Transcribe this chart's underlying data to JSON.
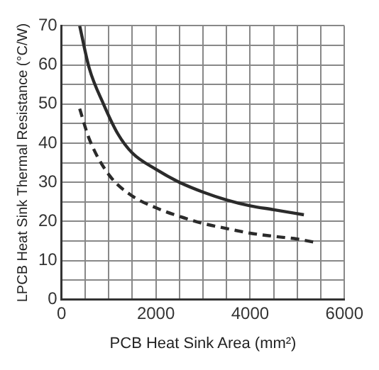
{
  "chart_data": {
    "type": "line",
    "xlabel": "PCB Heat Sink Area (mm²)",
    "ylabel": "LPCB Heat Sink Thermal Resistance (°C/W)",
    "xlim": [
      0,
      6000
    ],
    "ylim": [
      0,
      70
    ],
    "xticks": [
      0,
      {
        "value": 500,
        "label": null
      },
      {
        "value": 1000,
        "label": null
      },
      {
        "value": 1500,
        "label": null
      },
      2000,
      {
        "value": 2500,
        "label": null
      },
      {
        "value": 3000,
        "label": null
      },
      {
        "value": 3500,
        "label": null
      },
      4000,
      {
        "value": 4500,
        "label": null
      },
      {
        "value": 5000,
        "label": null
      },
      {
        "value": 5500,
        "label": null
      },
      6000
    ],
    "yticks": [
      0,
      {
        "value": 5,
        "label": null
      },
      10,
      {
        "value": 15,
        "label": null
      },
      20,
      {
        "value": 25,
        "label": null
      },
      30,
      {
        "value": 35,
        "label": null
      },
      40,
      {
        "value": 45,
        "label": null
      },
      50,
      {
        "value": 55,
        "label": null
      },
      60,
      {
        "value": 65,
        "label": null
      },
      70
    ],
    "grid": true,
    "marker": "none",
    "legend": false,
    "series": [
      {
        "color": "#2b2b2b",
        "line_style": "solid",
        "x": [
          385,
          587,
          890,
          1194,
          1500,
          2004,
          2500,
          3000,
          3500,
          4000,
          4500,
          5140
        ],
        "values": [
          70,
          59.2,
          50,
          42.4,
          37.5,
          33.3,
          30,
          27.5,
          25.5,
          24,
          23,
          21.7
        ]
      },
      {
        "color": "#2b2b2b",
        "line_style": "dashed",
        "x": [
          385,
          587,
          1000,
          1500,
          2000,
          2500,
          3000,
          3500,
          4000,
          4500,
          5000,
          5445
        ],
        "values": [
          48.8,
          41.1,
          32,
          26.5,
          23.5,
          21.3,
          19.5,
          18.2,
          17,
          16.2,
          15.5,
          14.5
        ]
      }
    ]
  }
}
